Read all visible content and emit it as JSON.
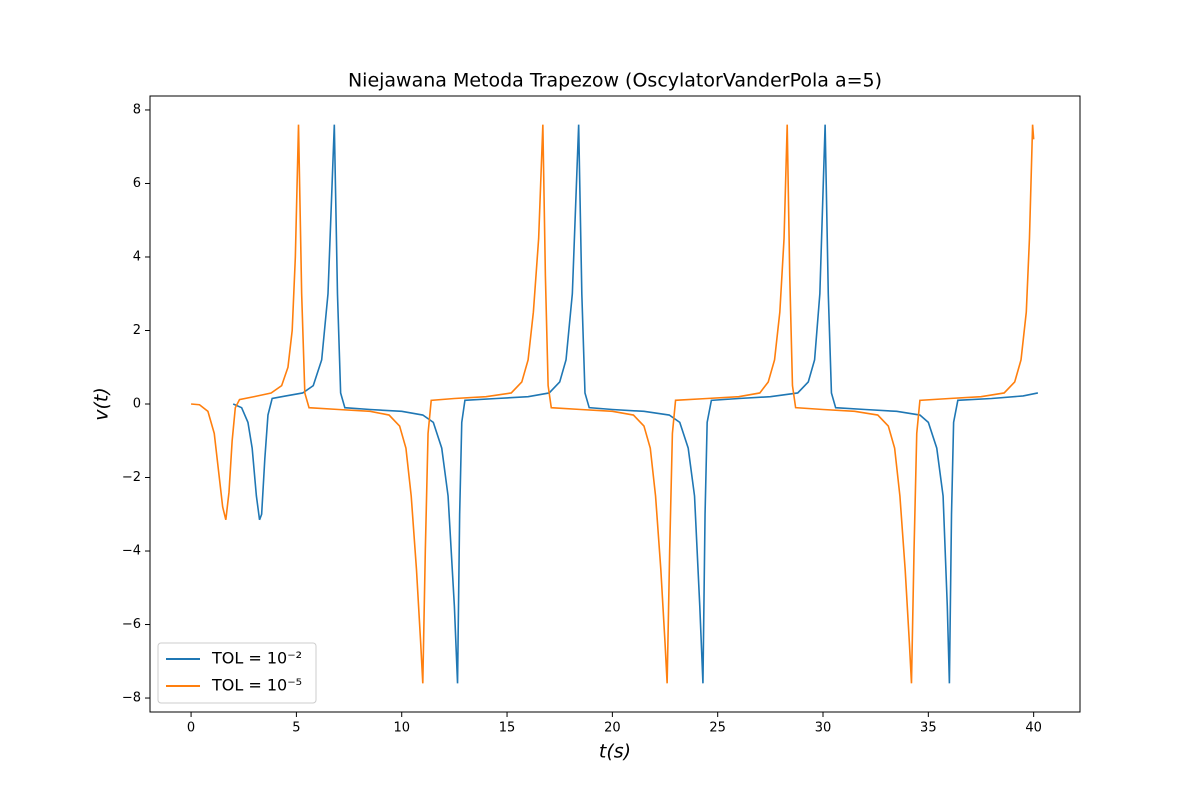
{
  "chart_data": {
    "type": "line",
    "title": "Niejawana Metoda Trapezow (OscylatorVanderPola a=5)",
    "x_label": "t(s)",
    "y_label": "v(t)",
    "xlim": [
      -1.95,
      42.2
    ],
    "ylim": [
      -8.38,
      8.38
    ],
    "xticks": [
      0,
      5,
      10,
      15,
      20,
      25,
      30,
      35,
      40
    ],
    "yticks": [
      {
        "value": -8,
        "label": "−8"
      },
      {
        "value": -6,
        "label": "−6"
      },
      {
        "value": -4,
        "label": "−4"
      },
      {
        "value": -2,
        "label": "−2"
      },
      0,
      2,
      4,
      6,
      8
    ],
    "grid": false,
    "legend": "lower left",
    "series": [
      {
        "name": "TOL = 10⁻²",
        "color": "#1f77b4",
        "x": [
          2.0,
          2.4,
          2.7,
          2.9,
          3.1,
          3.25,
          3.35,
          3.5,
          3.65,
          3.85,
          4.5,
          5.3,
          5.8,
          6.2,
          6.5,
          6.8,
          6.95,
          7.1,
          7.3,
          8.5,
          10,
          11,
          11.5,
          11.9,
          12.2,
          12.5,
          12.65,
          12.75,
          12.85,
          13.0,
          14.5,
          16,
          17,
          17.5,
          17.8,
          18.1,
          18.4,
          18.55,
          18.7,
          18.9,
          20,
          21.5,
          22.7,
          23.2,
          23.6,
          23.9,
          24.15,
          24.3,
          24.4,
          24.5,
          24.7,
          26,
          27.5,
          28.8,
          29.3,
          29.6,
          29.85,
          30.1,
          30.25,
          30.4,
          30.6,
          32,
          33.5,
          34.6,
          35.0,
          35.4,
          35.7,
          35.9,
          36.0,
          36.1,
          36.2,
          36.4,
          38,
          39.5,
          40.2
        ],
        "values": [
          0,
          -0.1,
          -0.5,
          -1.2,
          -2.5,
          -3.15,
          -3.0,
          -1.5,
          -0.3,
          0.15,
          0.22,
          0.3,
          0.5,
          1.2,
          3.0,
          7.6,
          3.0,
          0.3,
          -0.1,
          -0.15,
          -0.2,
          -0.3,
          -0.5,
          -1.2,
          -2.5,
          -5.5,
          -7.6,
          -3.0,
          -0.5,
          0.1,
          0.15,
          0.2,
          0.3,
          0.6,
          1.2,
          3.0,
          7.6,
          3.0,
          0.3,
          -0.1,
          -0.15,
          -0.2,
          -0.3,
          -0.5,
          -1.2,
          -2.5,
          -5.5,
          -7.6,
          -3.0,
          -0.5,
          0.1,
          0.15,
          0.2,
          0.3,
          0.6,
          1.2,
          3.0,
          7.6,
          3.0,
          0.3,
          -0.1,
          -0.15,
          -0.2,
          -0.3,
          -0.5,
          -1.2,
          -2.5,
          -5.5,
          -7.6,
          -3.0,
          -0.5,
          0.1,
          0.15,
          0.22,
          0.3
        ]
      },
      {
        "name": "TOL = 10⁻⁵",
        "color": "#ff7f0e",
        "x": [
          0,
          0.4,
          0.8,
          1.1,
          1.3,
          1.5,
          1.65,
          1.8,
          1.95,
          2.1,
          2.3,
          3.0,
          3.8,
          4.3,
          4.6,
          4.8,
          4.95,
          5.1,
          5.25,
          5.4,
          5.6,
          7.0,
          8.5,
          9.4,
          9.9,
          10.2,
          10.45,
          10.7,
          10.9,
          11.0,
          11.12,
          11.25,
          11.4,
          12.5,
          14.0,
          15.2,
          15.7,
          16.0,
          16.25,
          16.5,
          16.7,
          16.82,
          16.95,
          17.1,
          18.5,
          20.0,
          21.0,
          21.5,
          21.8,
          22.05,
          22.3,
          22.5,
          22.6,
          22.72,
          22.85,
          23.0,
          24.5,
          26,
          27,
          27.4,
          27.7,
          27.95,
          28.15,
          28.3,
          28.42,
          28.55,
          28.7,
          30,
          31.5,
          32.6,
          33.1,
          33.4,
          33.65,
          33.9,
          34.1,
          34.2,
          34.32,
          34.45,
          34.6,
          36,
          37.5,
          38.6,
          39.1,
          39.4,
          39.65,
          39.8,
          39.95,
          40.0
        ],
        "values": [
          0,
          -0.02,
          -0.2,
          -0.8,
          -1.8,
          -2.8,
          -3.15,
          -2.4,
          -1.0,
          -0.1,
          0.12,
          0.2,
          0.3,
          0.5,
          1.0,
          2.0,
          4.0,
          7.6,
          3.0,
          0.3,
          -0.1,
          -0.15,
          -0.2,
          -0.3,
          -0.6,
          -1.2,
          -2.5,
          -4.5,
          -6.5,
          -7.6,
          -4.0,
          -0.8,
          0.1,
          0.15,
          0.2,
          0.3,
          0.6,
          1.2,
          2.5,
          4.5,
          7.6,
          3.5,
          0.5,
          -0.1,
          -0.15,
          -0.2,
          -0.3,
          -0.6,
          -1.2,
          -2.5,
          -4.5,
          -6.5,
          -7.6,
          -4.0,
          -0.8,
          0.1,
          0.15,
          0.2,
          0.3,
          0.6,
          1.2,
          2.5,
          4.5,
          7.6,
          3.5,
          0.5,
          -0.1,
          -0.15,
          -0.2,
          -0.3,
          -0.6,
          -1.2,
          -2.5,
          -4.5,
          -6.5,
          -7.6,
          -4.0,
          -0.8,
          0.1,
          0.15,
          0.2,
          0.3,
          0.6,
          1.2,
          2.5,
          4.5,
          7.6,
          7.2
        ]
      }
    ]
  }
}
